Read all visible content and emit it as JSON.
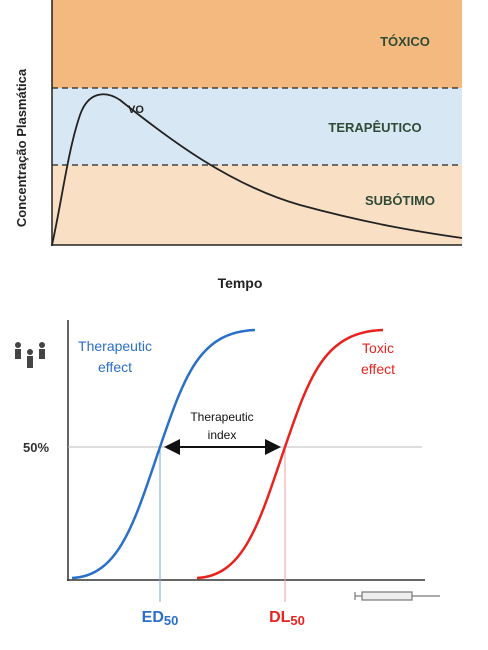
{
  "top": {
    "zones": [
      "TÓXICO",
      "TERAPÊUTICO",
      "SUBÓTIMO"
    ],
    "curve_label": "VO",
    "y_label": "Concentração Plasmática",
    "x_label": "Tempo"
  },
  "bottom": {
    "therapeutic_effect": [
      "Therapeutic",
      "effect"
    ],
    "toxic_effect": [
      "Toxic",
      "effect"
    ],
    "therapeutic_index": [
      "Therapeutic",
      "index"
    ],
    "half_label": "50%",
    "ed50": [
      "ED",
      "50"
    ],
    "dl50": [
      "DL",
      "50"
    ]
  }
}
